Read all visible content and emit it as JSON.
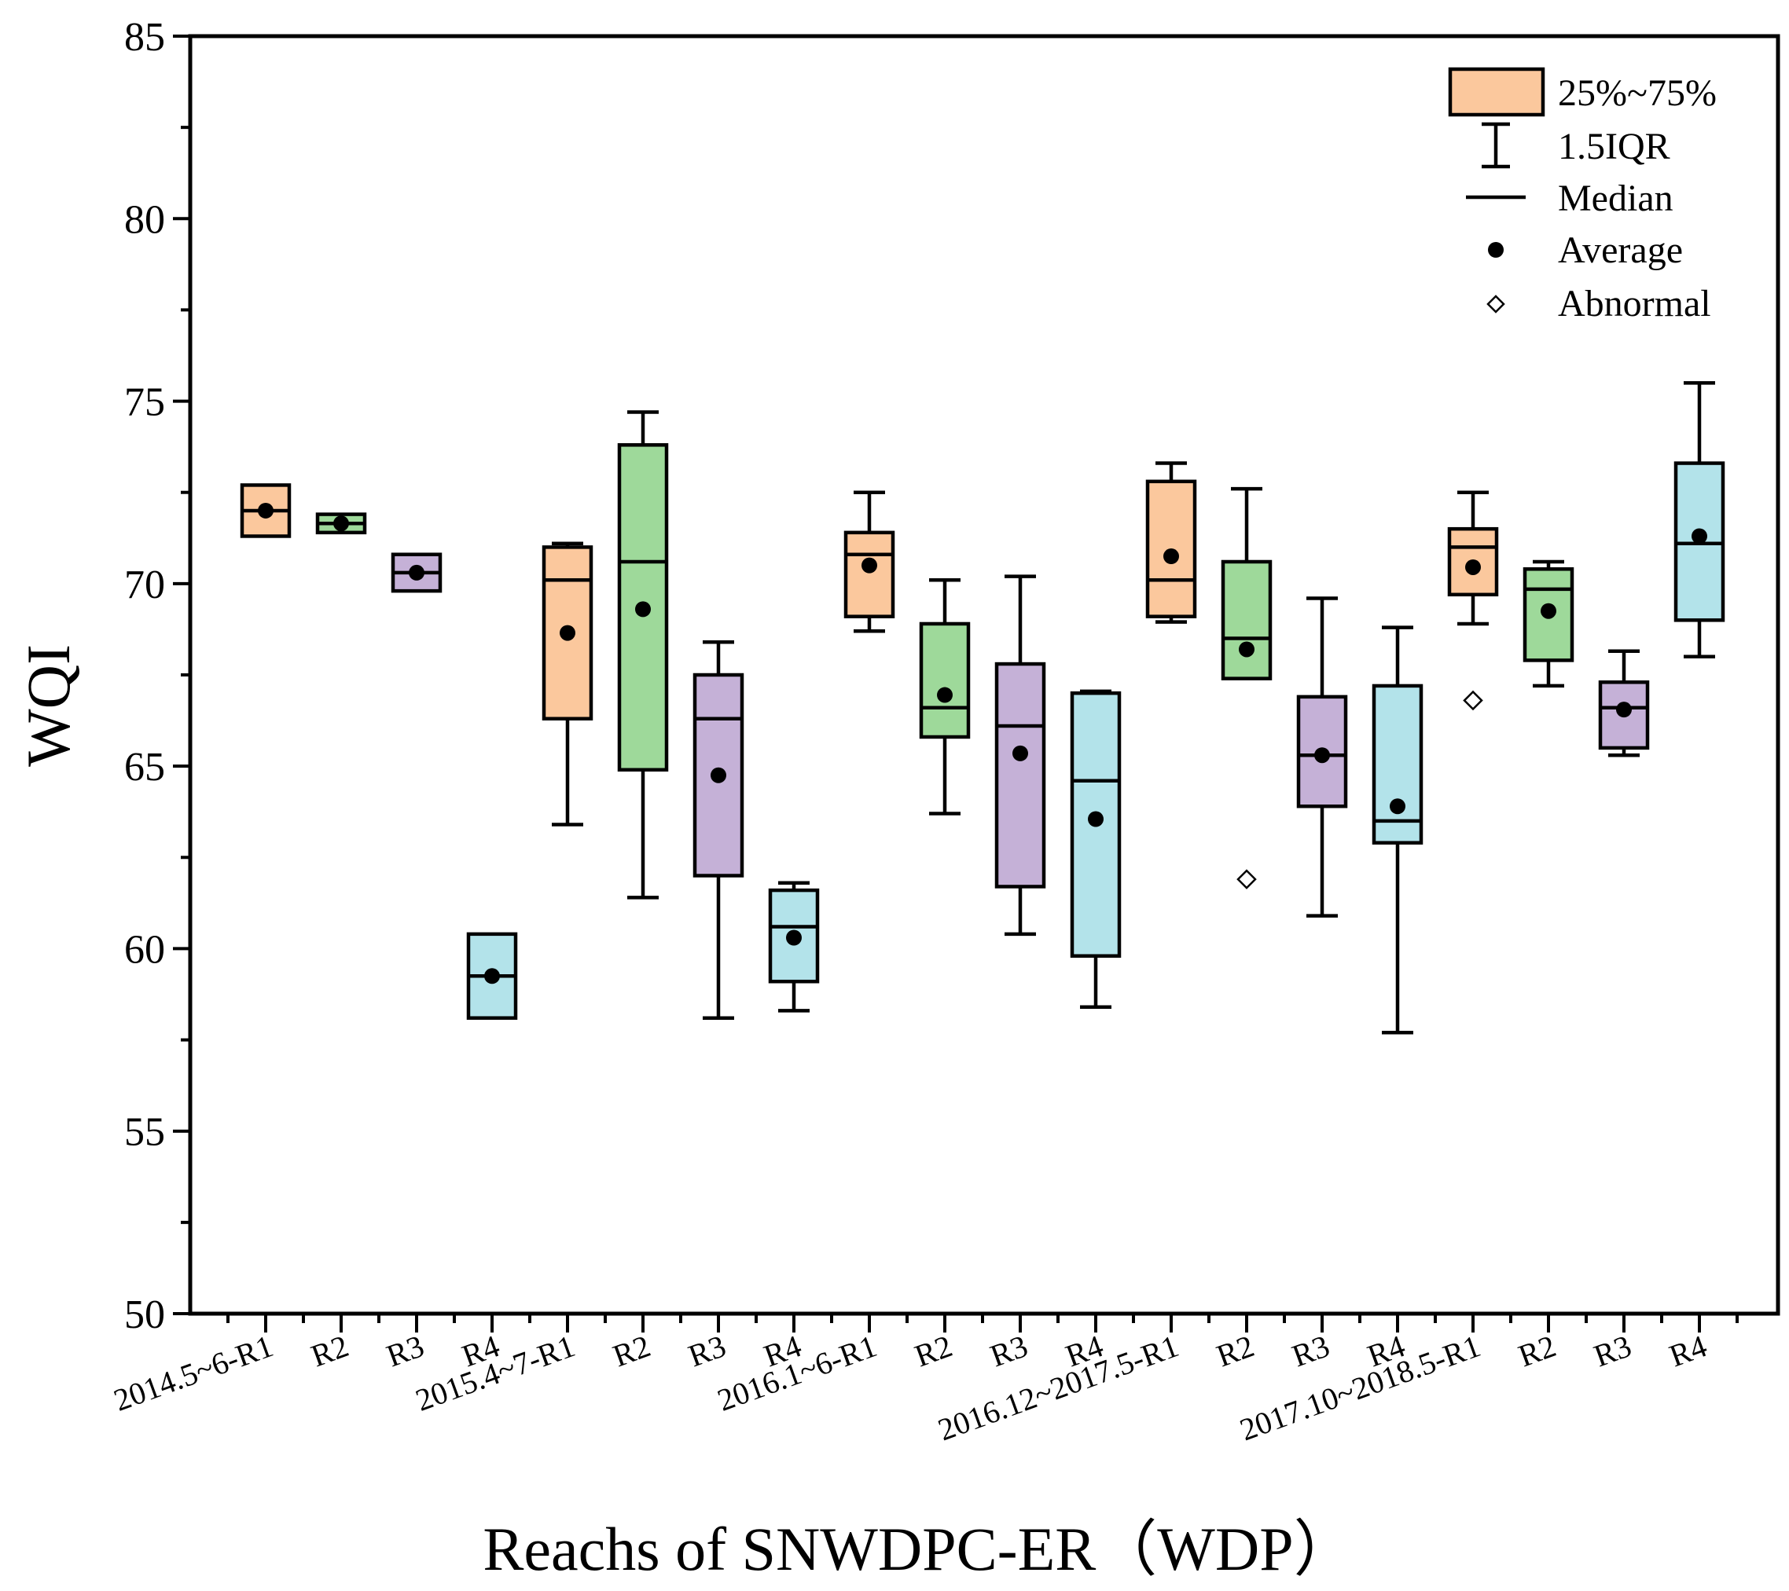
{
  "chart_data": {
    "type": "boxplot",
    "title": "",
    "xlabel": "Reachs of SNWDPC-ER（WDP）",
    "ylabel": "WQI",
    "ylim": [
      50,
      85
    ],
    "yticks": [
      50,
      55,
      60,
      65,
      70,
      75,
      80,
      85
    ],
    "ytick_labels": [
      "50",
      "55",
      "60",
      "65",
      "70",
      "75",
      "80",
      "85"
    ],
    "grid": false,
    "legend_position": "top-right",
    "legend": {
      "box": "25%~75%",
      "whisker": "1.5IQR",
      "median": "Median",
      "mean": "Average",
      "outlier": "Abnormal"
    },
    "colors": {
      "R1": "#FBC89D",
      "R2": "#9ED99A",
      "R3": "#C5B1D7",
      "R4": "#B3E3EA",
      "stroke": "#000000"
    },
    "categories": [
      "2014.5~6-R1",
      "R2",
      "R3",
      "R4",
      "2015.4~7-R1",
      "R2",
      "R3",
      "R4",
      "2016.1~6-R1",
      "R2",
      "R3",
      "R4",
      "2016.12~2017.5-R1",
      "R2",
      "R3",
      "R4",
      "2017.10~2018.5-R1",
      "R2",
      "R3",
      "R4"
    ],
    "boxes": [
      {
        "reach": "R1",
        "q1": 71.3,
        "q3": 72.7,
        "median": 72.0,
        "mean": 72.0,
        "whisker_low": null,
        "whisker_high": null,
        "outliers": []
      },
      {
        "reach": "R2",
        "q1": 71.4,
        "q3": 71.9,
        "median": 71.65,
        "mean": 71.65,
        "whisker_low": null,
        "whisker_high": null,
        "outliers": []
      },
      {
        "reach": "R3",
        "q1": 69.8,
        "q3": 70.8,
        "median": 70.3,
        "mean": 70.3,
        "whisker_low": null,
        "whisker_high": null,
        "outliers": []
      },
      {
        "reach": "R4",
        "q1": 58.1,
        "q3": 60.4,
        "median": 59.25,
        "mean": 59.25,
        "whisker_low": null,
        "whisker_high": null,
        "outliers": []
      },
      {
        "reach": "R1",
        "q1": 66.3,
        "q3": 71.0,
        "median": 70.1,
        "mean": 68.65,
        "whisker_low": 63.4,
        "whisker_high": 71.1,
        "outliers": []
      },
      {
        "reach": "R2",
        "q1": 64.9,
        "q3": 73.8,
        "median": 70.6,
        "mean": 69.3,
        "whisker_low": 61.4,
        "whisker_high": 74.7,
        "outliers": []
      },
      {
        "reach": "R3",
        "q1": 62.0,
        "q3": 67.5,
        "median": 66.3,
        "mean": 64.75,
        "whisker_low": 58.1,
        "whisker_high": 68.4,
        "outliers": []
      },
      {
        "reach": "R4",
        "q1": 59.1,
        "q3": 61.6,
        "median": 60.6,
        "mean": 60.3,
        "whisker_low": 58.3,
        "whisker_high": 61.8,
        "outliers": []
      },
      {
        "reach": "R1",
        "q1": 69.1,
        "q3": 71.4,
        "median": 70.8,
        "mean": 70.5,
        "whisker_low": 68.7,
        "whisker_high": 72.5,
        "outliers": []
      },
      {
        "reach": "R2",
        "q1": 65.8,
        "q3": 68.9,
        "median": 66.6,
        "mean": 66.95,
        "whisker_low": 63.7,
        "whisker_high": 70.1,
        "outliers": []
      },
      {
        "reach": "R3",
        "q1": 61.7,
        "q3": 67.8,
        "median": 66.1,
        "mean": 65.35,
        "whisker_low": 60.4,
        "whisker_high": 70.2,
        "outliers": []
      },
      {
        "reach": "R4",
        "q1": 59.8,
        "q3": 67.0,
        "median": 64.6,
        "mean": 63.55,
        "whisker_low": 58.4,
        "whisker_high": 67.05,
        "outliers": []
      },
      {
        "reach": "R1",
        "q1": 69.1,
        "q3": 72.8,
        "median": 70.1,
        "mean": 70.75,
        "whisker_low": 68.95,
        "whisker_high": 73.3,
        "outliers": []
      },
      {
        "reach": "R2",
        "q1": 67.4,
        "q3": 70.6,
        "median": 68.5,
        "mean": 68.2,
        "whisker_low": null,
        "whisker_high": 72.6,
        "outliers": [
          61.9
        ]
      },
      {
        "reach": "R3",
        "q1": 63.9,
        "q3": 66.9,
        "median": 65.3,
        "mean": 65.3,
        "whisker_low": 60.9,
        "whisker_high": 69.6,
        "outliers": []
      },
      {
        "reach": "R4",
        "q1": 62.9,
        "q3": 67.2,
        "median": 63.5,
        "mean": 63.9,
        "whisker_low": 57.7,
        "whisker_high": 68.8,
        "outliers": []
      },
      {
        "reach": "R1",
        "q1": 69.7,
        "q3": 71.5,
        "median": 71.0,
        "mean": 70.45,
        "whisker_low": 68.9,
        "whisker_high": 72.5,
        "outliers": [
          66.8
        ]
      },
      {
        "reach": "R2",
        "q1": 67.9,
        "q3": 70.4,
        "median": 69.85,
        "mean": 69.25,
        "whisker_low": 67.2,
        "whisker_high": 70.6,
        "outliers": []
      },
      {
        "reach": "R3",
        "q1": 65.5,
        "q3": 67.3,
        "median": 66.6,
        "mean": 66.55,
        "whisker_low": 65.3,
        "whisker_high": 68.15,
        "outliers": []
      },
      {
        "reach": "R4",
        "q1": 69.0,
        "q3": 73.3,
        "median": 71.1,
        "mean": 71.3,
        "whisker_low": 68.0,
        "whisker_high": 75.5,
        "outliers": []
      }
    ]
  }
}
